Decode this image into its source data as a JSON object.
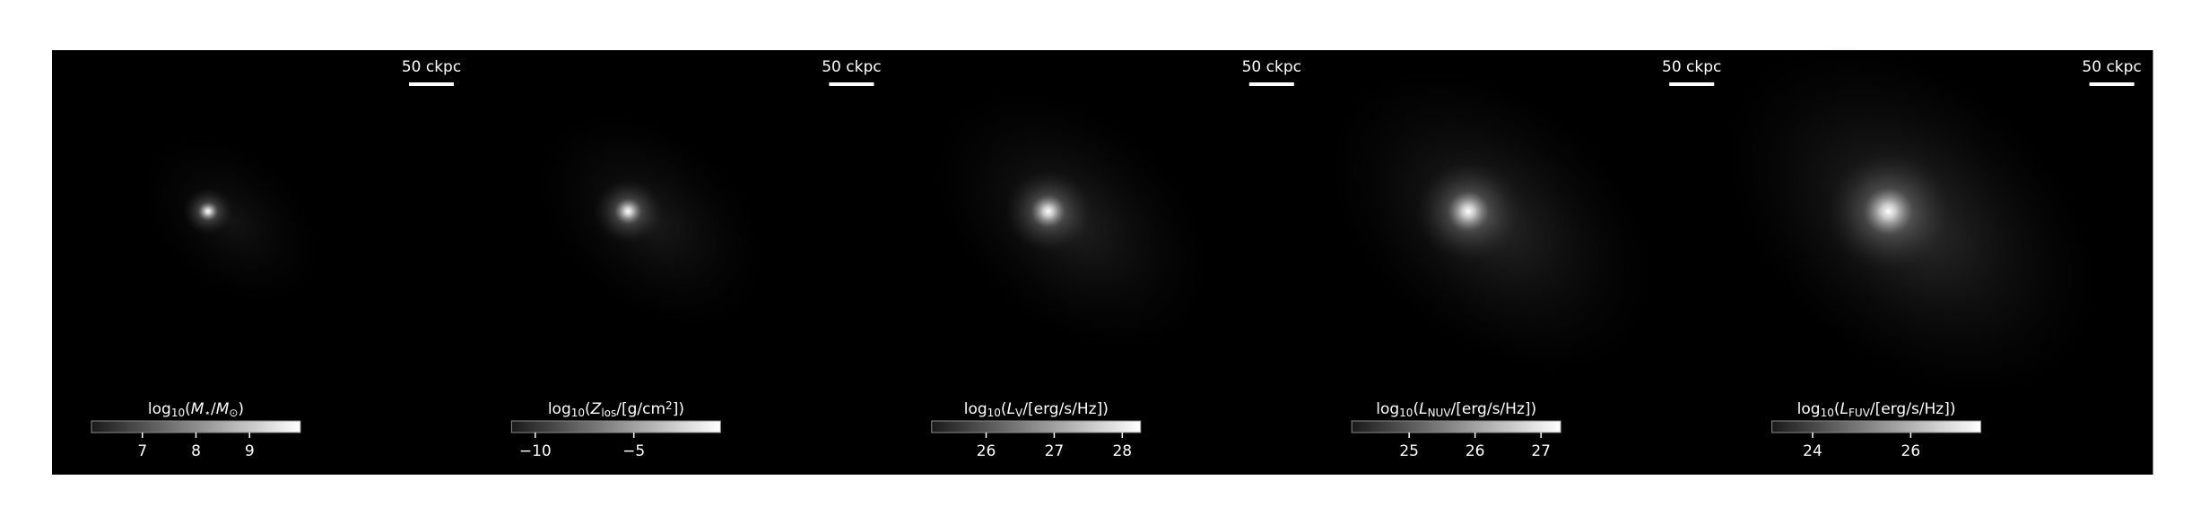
{
  "chart_data": [
    {
      "type": "image",
      "scale_label": "50 ckpc",
      "colorbar": {
        "label": [
          {
            "text": "log"
          },
          {
            "text": "10",
            "sub": true
          },
          {
            "text": "("
          },
          {
            "text": "M",
            "italic": true
          },
          {
            "text": "⋆",
            "sub": true
          },
          {
            "text": "/"
          },
          {
            "text": "M",
            "italic": true
          },
          {
            "text": "⊙",
            "sub": true
          },
          {
            "text": ")"
          }
        ],
        "xlim": [
          6.05,
          9.95
        ],
        "xticks": [
          7,
          8,
          9
        ]
      }
    },
    {
      "type": "image",
      "scale_label": "50 ckpc",
      "colorbar": {
        "label": [
          {
            "text": "log"
          },
          {
            "text": "10",
            "sub": true
          },
          {
            "text": "("
          },
          {
            "text": "Z",
            "italic": true
          },
          {
            "text": "los",
            "sub": true
          },
          {
            "text": "/[g/cm"
          },
          {
            "text": "2",
            "sup": true
          },
          {
            "text": "])"
          }
        ],
        "xlim": [
          -11.2,
          -0.6
        ],
        "xticks": [
          {
            "value": -10,
            "label": "−10"
          },
          {
            "value": -5,
            "label": "−5"
          }
        ]
      }
    },
    {
      "type": "image",
      "scale_label": "50 ckpc",
      "colorbar": {
        "label": [
          {
            "text": "log"
          },
          {
            "text": "10",
            "sub": true
          },
          {
            "text": "("
          },
          {
            "text": "L",
            "italic": true
          },
          {
            "text": "V",
            "sub": true
          },
          {
            "text": "/[erg/s/Hz])"
          }
        ],
        "xlim": [
          25.2,
          28.27
        ],
        "xticks": [
          26,
          27,
          28
        ]
      }
    },
    {
      "type": "image",
      "scale_label": "50 ckpc",
      "colorbar": {
        "label": [
          {
            "text": "log"
          },
          {
            "text": "10",
            "sub": true
          },
          {
            "text": "("
          },
          {
            "text": "L",
            "italic": true
          },
          {
            "text": "NUV",
            "sub": true
          },
          {
            "text": "/[erg/s/Hz])"
          }
        ],
        "xlim": [
          24.13,
          27.3
        ],
        "xticks": [
          25,
          26,
          27
        ]
      }
    },
    {
      "type": "image",
      "scale_label": "50 ckpc",
      "colorbar": {
        "label": [
          {
            "text": "log"
          },
          {
            "text": "10",
            "sub": true
          },
          {
            "text": "("
          },
          {
            "text": "L",
            "italic": true
          },
          {
            "text": "FUV",
            "sub": true
          },
          {
            "text": "/[erg/s/Hz])"
          }
        ],
        "xlim": [
          23.17,
          27.43
        ],
        "xticks": [
          24,
          26
        ]
      }
    }
  ]
}
